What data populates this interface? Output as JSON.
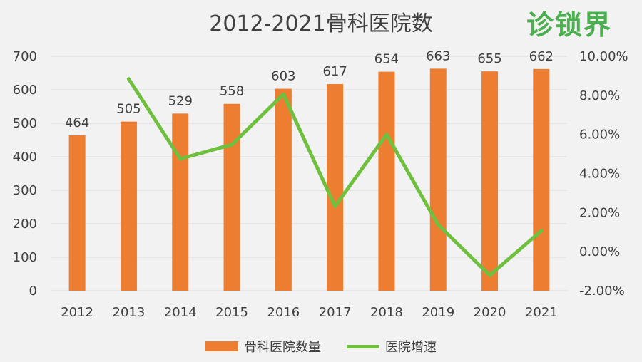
{
  "chart_data": {
    "type": "bar",
    "title": "2012-2021骨科医院数",
    "categories": [
      "2012",
      "2013",
      "2014",
      "2015",
      "2016",
      "2017",
      "2018",
      "2019",
      "2020",
      "2021"
    ],
    "series": [
      {
        "name": "骨科医院数量",
        "type": "bar",
        "axis": "left",
        "values": [
          464,
          505,
          529,
          558,
          603,
          617,
          654,
          663,
          655,
          662
        ],
        "data_labels": [
          "464",
          "505",
          "529",
          "558",
          "603",
          "617",
          "654",
          "663",
          "655",
          "662"
        ],
        "color": "#ed7d31"
      },
      {
        "name": "医院增速",
        "type": "line",
        "axis": "right",
        "values": [
          null,
          0.0884,
          0.0475,
          0.0548,
          0.0806,
          0.0232,
          0.06,
          0.0138,
          -0.0121,
          0.0107
        ],
        "color": "#70c040"
      }
    ],
    "y_left": {
      "ylim": [
        0,
        700
      ],
      "ticks": [
        "0",
        "100",
        "200",
        "300",
        "400",
        "500",
        "600",
        "700"
      ]
    },
    "y_right": {
      "ylim": [
        -0.02,
        0.1
      ],
      "ticks": [
        "-2.00%",
        "0.00%",
        "2.00%",
        "4.00%",
        "6.00%",
        "8.00%",
        "10.00%"
      ]
    },
    "grid": true,
    "legend_position": "bottom"
  },
  "logo": {
    "text": "诊锁界",
    "color": "#4caf50"
  }
}
